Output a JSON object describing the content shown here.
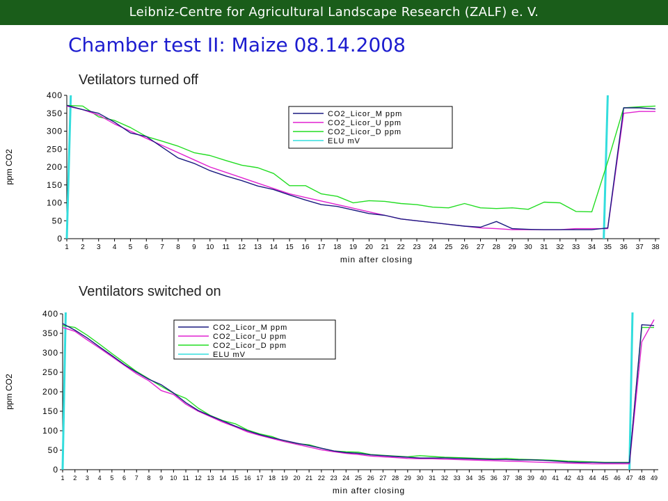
{
  "header": {
    "text": "Leibniz-Centre for Agricultural Landscape Research (ZALF) e. V."
  },
  "title": "Chamber test II: Maize 08.14.2008",
  "colors": {
    "header_bg": "#1a5d1a",
    "title": "#1c1ccf",
    "M": "#1a1a80",
    "U": "#e020d0",
    "D": "#22dd22",
    "ELU": "#33dddd"
  },
  "chart_data": [
    {
      "type": "line",
      "subtitle": "Vetilators turned off",
      "xlabel": "min after closing",
      "ylabel": "ppm CO2",
      "ylim": [
        0,
        400
      ],
      "yticks": [
        0,
        50,
        100,
        150,
        200,
        250,
        300,
        350,
        400
      ],
      "categories": [
        "1",
        "2",
        "3",
        "4",
        "5",
        "6",
        "7",
        "8",
        "9",
        "10",
        "11",
        "12",
        "13",
        "14",
        "15",
        "16",
        "17",
        "18",
        "19",
        "20",
        "21",
        "22",
        "23",
        "24",
        "25",
        "26",
        "27",
        "28",
        "29",
        "30",
        "31",
        "32",
        "33",
        "34",
        "35",
        "36",
        "37",
        "38"
      ],
      "legend_position": "top-center",
      "series": [
        {
          "name": "CO2_Licor_M ppm",
          "color": "#1a1a80",
          "values": [
            372,
            360,
            350,
            325,
            295,
            285,
            255,
            225,
            210,
            190,
            175,
            162,
            147,
            137,
            122,
            108,
            95,
            90,
            80,
            70,
            65,
            55,
            50,
            45,
            40,
            35,
            32,
            48,
            28,
            26,
            25,
            25,
            25,
            25,
            30,
            365,
            365,
            362
          ]
        },
        {
          "name": "CO2_Licor_U ppm",
          "color": "#e020d0",
          "values": [
            370,
            360,
            345,
            320,
            300,
            280,
            260,
            240,
            220,
            200,
            185,
            170,
            155,
            140,
            125,
            115,
            105,
            95,
            85,
            75,
            65,
            55,
            50,
            45,
            40,
            35,
            30,
            28,
            25,
            25,
            25,
            25,
            28,
            28,
            28,
            350,
            355,
            355
          ]
        },
        {
          "name": "CO2_Licor_D ppm",
          "color": "#22dd22",
          "values": [
            372,
            370,
            340,
            330,
            310,
            285,
            272,
            258,
            240,
            232,
            218,
            205,
            198,
            182,
            148,
            148,
            125,
            118,
            100,
            106,
            104,
            98,
            95,
            88,
            86,
            98,
            86,
            84,
            86,
            82,
            102,
            100,
            76,
            75,
            215,
            365,
            368,
            370
          ]
        },
        {
          "name": "ELU mV",
          "color": "#33dddd"
        }
      ],
      "elu_pulses": [
        {
          "x0": 1,
          "x1": 1.25
        },
        {
          "x0": 34.75,
          "x1": 35.0
        }
      ]
    },
    {
      "type": "line",
      "subtitle": "Ventilators switched on",
      "xlabel": "min after closing",
      "ylabel": "ppm CO2",
      "ylim": [
        0,
        400
      ],
      "yticks": [
        0,
        50,
        100,
        150,
        200,
        250,
        300,
        350,
        400
      ],
      "categories": [
        "1",
        "2",
        "3",
        "4",
        "5",
        "6",
        "7",
        "8",
        "9",
        "10",
        "11",
        "12",
        "13",
        "14",
        "15",
        "16",
        "17",
        "18",
        "19",
        "20",
        "21",
        "22",
        "23",
        "24",
        "25",
        "26",
        "27",
        "28",
        "29",
        "30",
        "31",
        "32",
        "33",
        "34",
        "35",
        "36",
        "37",
        "38",
        "39",
        "40",
        "41",
        "42",
        "43",
        "44",
        "45",
        "46",
        "47",
        "48",
        "49"
      ],
      "legend_position": "top-center",
      "series": [
        {
          "name": "CO2_Licor_M ppm",
          "color": "#1a1a80",
          "values": [
            375,
            358,
            338,
            315,
            293,
            270,
            250,
            232,
            218,
            197,
            172,
            152,
            138,
            125,
            112,
            100,
            90,
            82,
            75,
            68,
            62,
            55,
            48,
            44,
            42,
            38,
            36,
            34,
            32,
            30,
            30,
            30,
            29,
            28,
            27,
            26,
            26,
            25,
            25,
            24,
            22,
            20,
            19,
            19,
            18,
            18,
            18,
            372,
            370
          ]
        },
        {
          "name": "CO2_Licor_U ppm",
          "color": "#e020d0",
          "values": [
            365,
            355,
            333,
            312,
            290,
            268,
            246,
            228,
            203,
            193,
            168,
            150,
            136,
            122,
            110,
            97,
            88,
            80,
            72,
            65,
            58,
            51,
            46,
            42,
            39,
            35,
            33,
            31,
            29,
            28,
            28,
            27,
            26,
            25,
            24,
            23,
            22,
            21,
            20,
            19,
            18,
            17,
            16,
            15,
            15,
            15,
            15,
            328,
            385
          ]
        },
        {
          "name": "CO2_Licor_D ppm",
          "color": "#22dd22",
          "values": [
            370,
            365,
            345,
            322,
            298,
            275,
            252,
            233,
            214,
            196,
            183,
            158,
            139,
            126,
            118,
            102,
            92,
            85,
            73,
            67,
            64,
            55,
            48,
            46,
            45,
            39,
            37,
            35,
            33,
            36,
            34,
            32,
            31,
            30,
            29,
            28,
            29,
            27,
            26,
            25,
            24,
            22,
            21,
            20,
            19,
            19,
            19,
            365,
            365
          ]
        },
        {
          "name": "ELU mV",
          "color": "#33dddd"
        }
      ],
      "elu_pulses": [
        {
          "x0": 1,
          "x1": 1.25
        },
        {
          "x0": 47.0,
          "x1": 47.25
        }
      ]
    }
  ]
}
